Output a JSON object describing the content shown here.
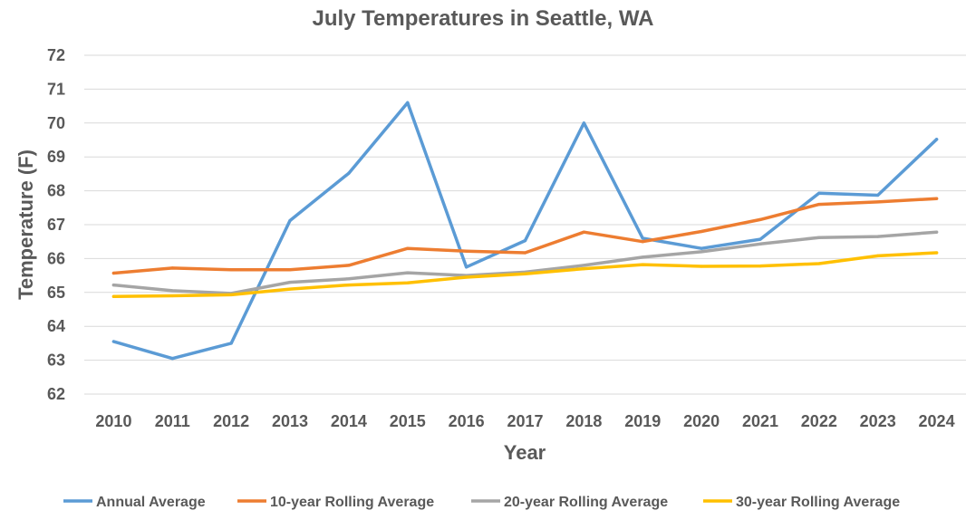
{
  "chart_data": {
    "type": "line",
    "title": "July Temperatures in Seattle, WA",
    "xlabel": "Year",
    "ylabel": "Temperature (F)",
    "ylim": [
      62,
      72
    ],
    "yticks": [
      62,
      63,
      64,
      65,
      66,
      67,
      68,
      69,
      70,
      71,
      72
    ],
    "grid": true,
    "legend_position": "bottom",
    "categories": [
      "2010",
      "2011",
      "2012",
      "2013",
      "2014",
      "2015",
      "2016",
      "2017",
      "2018",
      "2019",
      "2020",
      "2021",
      "2022",
      "2023",
      "2024"
    ],
    "series": [
      {
        "name": "Annual Average",
        "color": "#5b9bd5",
        "values": [
          63.55,
          63.05,
          63.5,
          67.12,
          68.52,
          70.6,
          65.75,
          66.53,
          70.0,
          66.6,
          66.3,
          66.57,
          67.93,
          67.87,
          69.52
        ]
      },
      {
        "name": "10-year Rolling Average",
        "color": "#ed7d31",
        "values": [
          65.57,
          65.72,
          65.67,
          65.67,
          65.8,
          66.3,
          66.22,
          66.17,
          66.78,
          66.5,
          66.8,
          67.15,
          67.6,
          67.67,
          67.77
        ]
      },
      {
        "name": "20-year Rolling Average",
        "color": "#a5a5a5",
        "values": [
          65.22,
          65.05,
          64.97,
          65.3,
          65.4,
          65.58,
          65.5,
          65.6,
          65.8,
          66.04,
          66.2,
          66.43,
          66.62,
          66.65,
          66.78
        ]
      },
      {
        "name": "30-year Rolling Average",
        "color": "#ffc000",
        "values": [
          64.88,
          64.9,
          64.93,
          65.1,
          65.22,
          65.28,
          65.45,
          65.55,
          65.7,
          65.82,
          65.77,
          65.78,
          65.85,
          66.08,
          66.17
        ]
      }
    ]
  }
}
